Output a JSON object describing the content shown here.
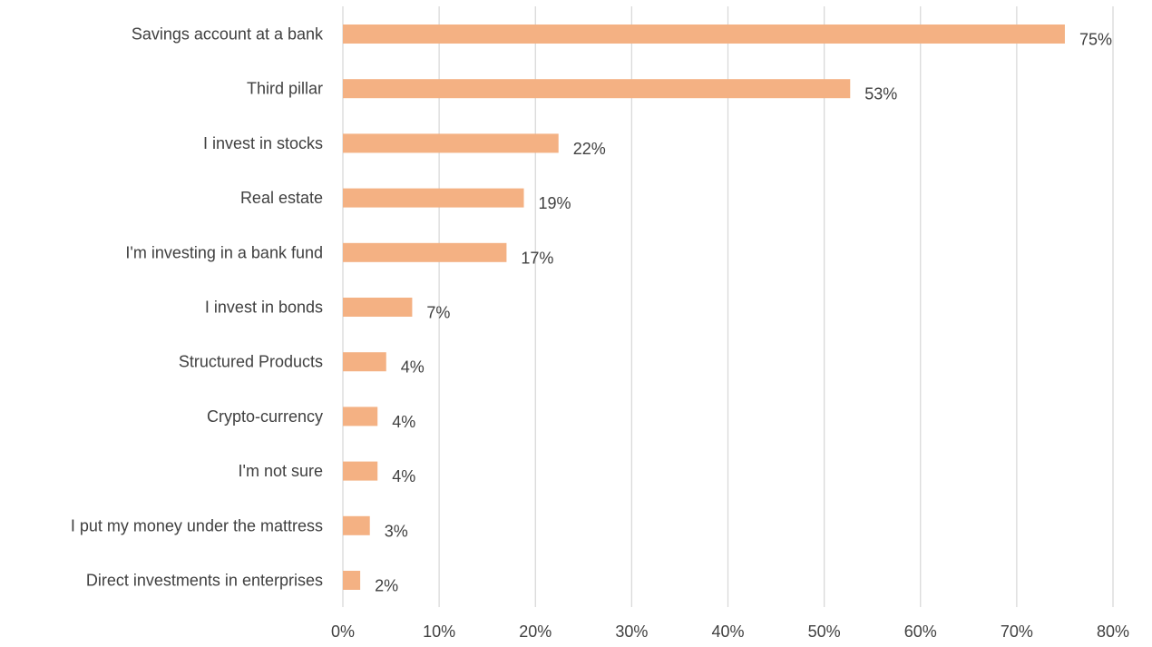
{
  "chart_data": {
    "type": "bar",
    "orientation": "horizontal",
    "title": "",
    "xlabel": "",
    "ylabel": "",
    "categories": [
      "Savings account at a bank",
      "Third pillar",
      "I invest in stocks",
      "Real estate",
      "I'm investing in a bank fund",
      "I invest in bonds",
      "Structured Products",
      "Crypto-currency",
      "I'm not sure",
      "I put my money under the mattress",
      "Direct investments in enterprises"
    ],
    "values": [
      75,
      52.7,
      22.4,
      18.8,
      17,
      7.2,
      4.5,
      3.6,
      3.6,
      2.8,
      1.8
    ],
    "data_labels": [
      "75%",
      "53%",
      "22%",
      "19%",
      "17%",
      "7%",
      "4%",
      "4%",
      "4%",
      "3%",
      "2%"
    ],
    "xlim": [
      0,
      80
    ],
    "x_ticks": [
      0,
      10,
      20,
      30,
      40,
      50,
      60,
      70,
      80
    ],
    "x_tick_labels": [
      "0%",
      "10%",
      "20%",
      "30%",
      "40%",
      "50%",
      "60%",
      "70%",
      "80%"
    ],
    "grid": "vertical",
    "legend": "none",
    "bar_color": "#F4B183",
    "grid_color": "#D9D9D9",
    "text_color": "#404040"
  }
}
